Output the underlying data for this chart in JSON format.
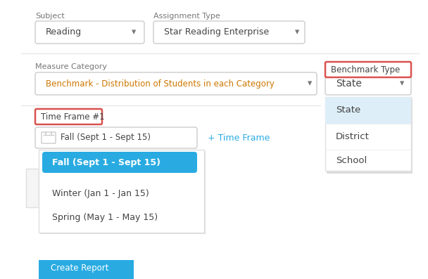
{
  "bg_color": "#ffffff",
  "fig_width": 6.08,
  "fig_height": 3.97,
  "dpi": 100,
  "subject_label": "Subject",
  "subject_value": "Reading",
  "assignment_label": "Assignment Type",
  "assignment_value": "Star Reading Enterprise",
  "measure_label": "Measure Category",
  "measure_value": "Benchmark - Distribution of Students in each Category",
  "benchmark_label": "Benchmark Type",
  "benchmark_value": "State",
  "timeframe_label": "Time Frame #1",
  "timeframe_value": "Fall (Sept 1 - Sept 15)",
  "timeframe_link": "+ Time Frame",
  "dropdown_items_left": [
    "Fall (Sept 1 - Sept 15)",
    "Winter (Jan 1 - Jan 15)",
    "Spring (May 1 - May 15)"
  ],
  "dropdown_items_right": [
    "State",
    "District",
    "School"
  ],
  "blue_color": "#29ABE2",
  "light_blue_bg": "#ddeef8",
  "red_border": "#d9534f",
  "gray_border": "#cccccc",
  "gray_border_light": "#e0e0e0",
  "gray_text": "#777777",
  "dark_text": "#444444",
  "orange_text": "#cc7700",
  "dropdown_arrow": "#777777",
  "divider_color": "#e8e8e8",
  "shadow_color": "#dddddd",
  "button_color": "#29ABE2",
  "white": "#ffffff"
}
